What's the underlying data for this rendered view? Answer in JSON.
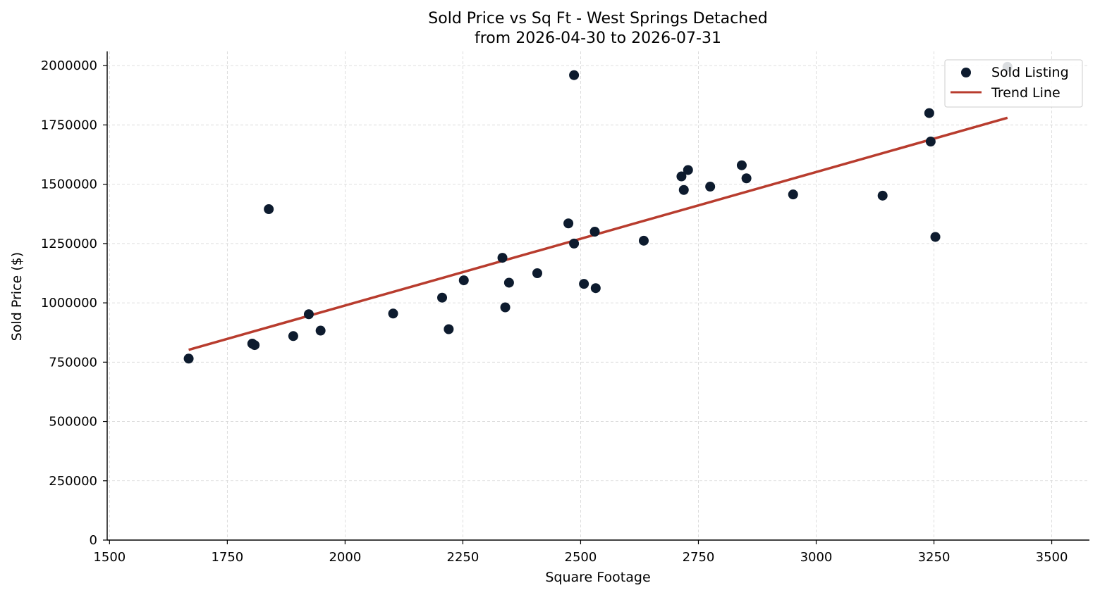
{
  "chart_data": {
    "type": "scatter",
    "title": "Sold Price vs Sq Ft - West Springs Detached",
    "subtitle": "from 2026-04-30 to 2026-07-31",
    "xlabel": "Square Footage",
    "ylabel": "Sold Price ($)",
    "xlim": [
      1495,
      3580
    ],
    "ylim": [
      0,
      2060000
    ],
    "xticks": [
      1500,
      1750,
      2000,
      2250,
      2500,
      2750,
      3000,
      3250,
      3500
    ],
    "yticks": [
      0,
      250000,
      500000,
      750000,
      1000000,
      1250000,
      1500000,
      1750000,
      2000000
    ],
    "grid": true,
    "legend_position": "top-right",
    "colors": {
      "points": "#0d1b2e",
      "trend": "#b83c2e",
      "grid": "#d5d5d5"
    },
    "series": [
      {
        "name": "Sold Listing",
        "kind": "scatter",
        "points": [
          [
            1668,
            765000
          ],
          [
            1803,
            828000
          ],
          [
            1808,
            822000
          ],
          [
            1838,
            1395000
          ],
          [
            1890,
            860000
          ],
          [
            1923,
            952000
          ],
          [
            1948,
            883000
          ],
          [
            2102,
            955000
          ],
          [
            2206,
            1022000
          ],
          [
            2220,
            889000
          ],
          [
            2252,
            1095000
          ],
          [
            2334,
            1190000
          ],
          [
            2340,
            981000
          ],
          [
            2348,
            1085000
          ],
          [
            2408,
            1125000
          ],
          [
            2474,
            1335000
          ],
          [
            2486,
            1250000
          ],
          [
            2486,
            1960000
          ],
          [
            2507,
            1080000
          ],
          [
            2530,
            1300000
          ],
          [
            2532,
            1062000
          ],
          [
            2634,
            1262000
          ],
          [
            2714,
            1533000
          ],
          [
            2719,
            1476000
          ],
          [
            2728,
            1560000
          ],
          [
            2775,
            1490000
          ],
          [
            2842,
            1580000
          ],
          [
            2852,
            1525000
          ],
          [
            2951,
            1457000
          ],
          [
            3141,
            1452000
          ],
          [
            3240,
            1800000
          ],
          [
            3243,
            1680000
          ],
          [
            3253,
            1278000
          ],
          [
            3406,
            1995000
          ]
        ]
      },
      {
        "name": "Trend Line",
        "kind": "line",
        "points": [
          [
            1668,
            802000
          ],
          [
            3406,
            1780000
          ]
        ]
      }
    ]
  }
}
